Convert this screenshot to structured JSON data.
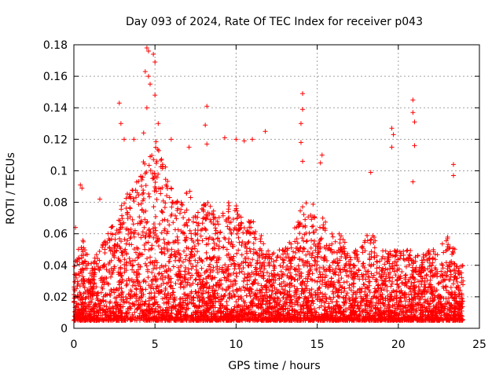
{
  "chart_data": {
    "type": "scatter",
    "title": "Day 093 of 2024, Rate Of TEC Index for receiver p043",
    "xlabel": "GPS time / hours",
    "ylabel": "ROTI / TECUs",
    "xlim": [
      0,
      25
    ],
    "ylim": [
      0,
      0.18
    ],
    "x_ticks": [
      0,
      5,
      10,
      15,
      20,
      25
    ],
    "x_tick_labels": [
      "0",
      "5",
      "10",
      "15",
      "20",
      "25"
    ],
    "y_ticks": [
      0,
      0.02,
      0.04,
      0.06,
      0.08,
      0.1,
      0.12,
      0.14,
      0.16,
      0.18
    ],
    "y_tick_labels": [
      "0",
      "0.02",
      "0.04",
      "0.06",
      "0.08",
      "0.1",
      "0.12",
      "0.14",
      "0.16",
      "0.18"
    ],
    "grid": true,
    "marker": "+",
    "color": "#ff0000",
    "envelope": {
      "x": [
        0,
        0.5,
        1,
        1.5,
        2,
        2.5,
        3,
        3.5,
        4,
        4.5,
        5,
        5.5,
        6,
        6.5,
        7,
        7.5,
        8,
        8.5,
        9,
        9.5,
        10,
        10.5,
        11,
        11.5,
        12,
        12.5,
        13,
        13.5,
        14,
        14.5,
        15,
        15.5,
        16,
        16.5,
        17,
        17.5,
        18,
        18.5,
        19,
        19.5,
        20,
        20.5,
        21,
        21.5,
        22,
        22.5,
        23,
        23.5,
        24
      ],
      "y_max": [
        0.04,
        0.06,
        0.04,
        0.05,
        0.06,
        0.07,
        0.08,
        0.09,
        0.1,
        0.11,
        0.12,
        0.11,
        0.09,
        0.08,
        0.09,
        0.08,
        0.08,
        0.08,
        0.07,
        0.08,
        0.08,
        0.07,
        0.07,
        0.06,
        0.05,
        0.05,
        0.05,
        0.06,
        0.08,
        0.08,
        0.08,
        0.07,
        0.06,
        0.06,
        0.05,
        0.05,
        0.06,
        0.06,
        0.05,
        0.05,
        0.05,
        0.05,
        0.05,
        0.05,
        0.05,
        0.05,
        0.06,
        0.05,
        0.04
      ]
    },
    "outliers": [
      {
        "x": 0.1,
        "y": 0.064
      },
      {
        "x": 0.4,
        "y": 0.091
      },
      {
        "x": 0.5,
        "y": 0.089
      },
      {
        "x": 1.6,
        "y": 0.082
      },
      {
        "x": 2.8,
        "y": 0.143
      },
      {
        "x": 2.9,
        "y": 0.13
      },
      {
        "x": 3.1,
        "y": 0.12
      },
      {
        "x": 3.7,
        "y": 0.12
      },
      {
        "x": 4.3,
        "y": 0.124
      },
      {
        "x": 4.4,
        "y": 0.163
      },
      {
        "x": 4.5,
        "y": 0.178
      },
      {
        "x": 4.6,
        "y": 0.176
      },
      {
        "x": 4.6,
        "y": 0.16
      },
      {
        "x": 4.7,
        "y": 0.155
      },
      {
        "x": 4.5,
        "y": 0.14
      },
      {
        "x": 4.9,
        "y": 0.174
      },
      {
        "x": 5.0,
        "y": 0.169
      },
      {
        "x": 5.0,
        "y": 0.148
      },
      {
        "x": 5.2,
        "y": 0.13
      },
      {
        "x": 6.0,
        "y": 0.12
      },
      {
        "x": 7.1,
        "y": 0.115
      },
      {
        "x": 8.2,
        "y": 0.141
      },
      {
        "x": 8.1,
        "y": 0.129
      },
      {
        "x": 8.2,
        "y": 0.117
      },
      {
        "x": 9.3,
        "y": 0.121
      },
      {
        "x": 10.0,
        "y": 0.12
      },
      {
        "x": 10.5,
        "y": 0.119
      },
      {
        "x": 11.0,
        "y": 0.12
      },
      {
        "x": 11.8,
        "y": 0.125
      },
      {
        "x": 14.1,
        "y": 0.149
      },
      {
        "x": 14.1,
        "y": 0.139
      },
      {
        "x": 14.0,
        "y": 0.13
      },
      {
        "x": 14.0,
        "y": 0.118
      },
      {
        "x": 14.1,
        "y": 0.106
      },
      {
        "x": 15.3,
        "y": 0.11
      },
      {
        "x": 15.2,
        "y": 0.105
      },
      {
        "x": 18.3,
        "y": 0.099
      },
      {
        "x": 19.6,
        "y": 0.127
      },
      {
        "x": 19.7,
        "y": 0.123
      },
      {
        "x": 19.6,
        "y": 0.115
      },
      {
        "x": 20.9,
        "y": 0.145
      },
      {
        "x": 20.9,
        "y": 0.137
      },
      {
        "x": 21.0,
        "y": 0.131
      },
      {
        "x": 21.0,
        "y": 0.116
      },
      {
        "x": 20.9,
        "y": 0.093
      },
      {
        "x": 23.4,
        "y": 0.104
      },
      {
        "x": 23.4,
        "y": 0.097
      }
    ]
  }
}
